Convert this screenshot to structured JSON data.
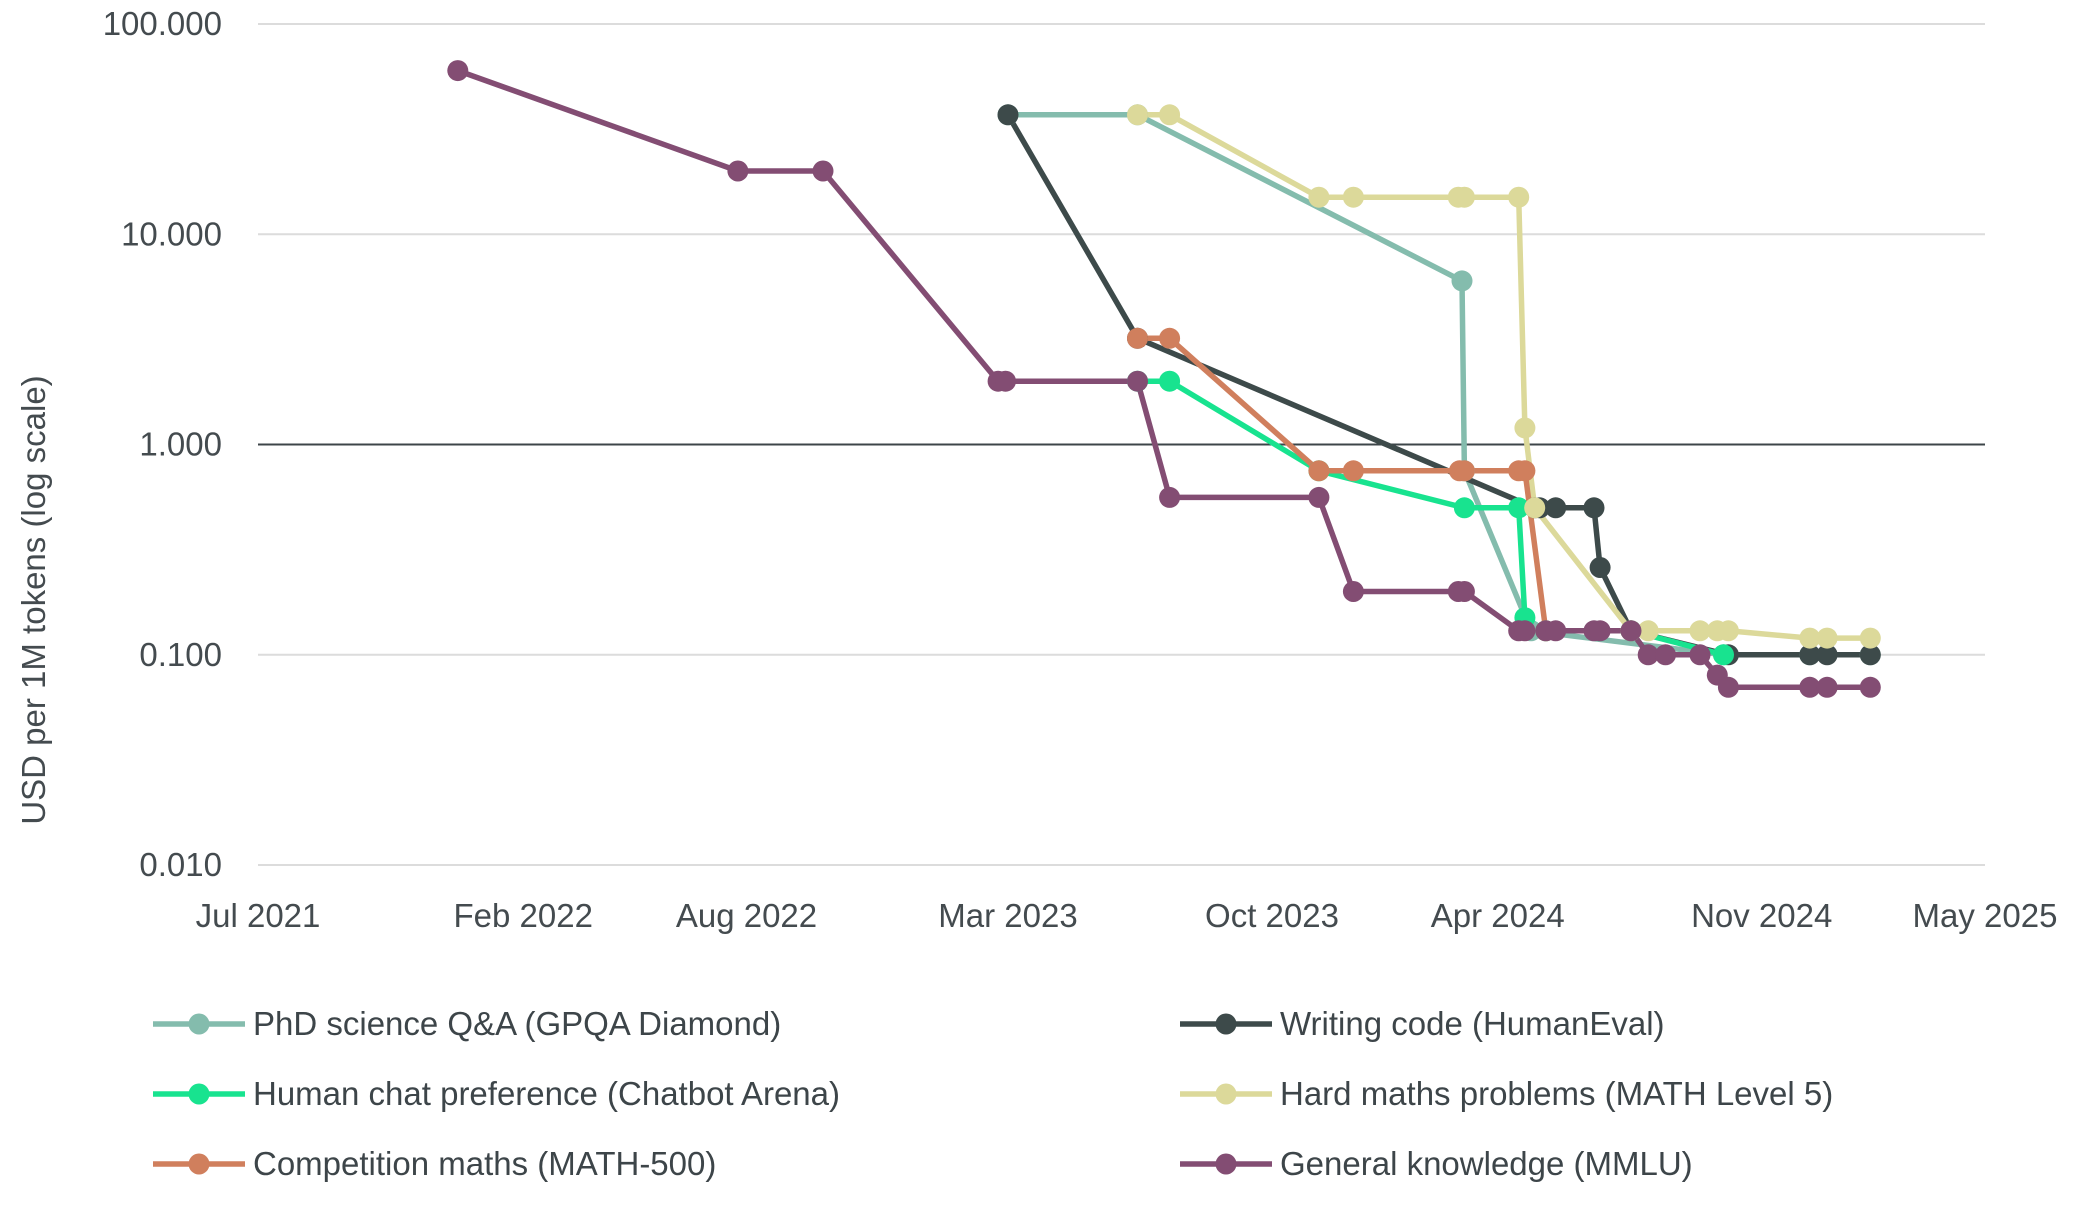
{
  "chart_data": {
    "type": "line",
    "title": "",
    "ylabel": "USD per 1M tokens (log scale)",
    "yscale": "log",
    "ylim": [
      0.01,
      100
    ],
    "yticks": [
      0.01,
      0.1,
      1,
      10,
      100
    ],
    "ytick_labels": [
      "0.010",
      "0.100",
      "1.000",
      "10.000",
      "100.000"
    ],
    "xlim": [
      "2021-07-01",
      "2025-05-01"
    ],
    "xticks": [
      "2021-07-01",
      "2022-02-01",
      "2022-08-01",
      "2023-03-01",
      "2023-10-01",
      "2024-04-01",
      "2024-11-01",
      "2025-05-01"
    ],
    "xtick_labels": [
      "Jul 2021",
      "Feb 2022",
      "Aug 2022",
      "Mar 2023",
      "Oct 2023",
      "Apr 2024",
      "Nov 2024",
      "May 2025"
    ],
    "reference_line": 1,
    "grid": "horizontal",
    "legend_position": "bottom",
    "series": [
      {
        "name": "PhD science Q&A (GPQA Diamond)",
        "color": "#84bcad",
        "points": [
          [
            "2023-03-01",
            37
          ],
          [
            "2023-06-14",
            37
          ],
          [
            "2024-03-03",
            6
          ],
          [
            "2024-03-05",
            0.75
          ],
          [
            "2024-04-28",
            0.13
          ],
          [
            "2024-10-01",
            0.1
          ],
          [
            "2024-12-10",
            0.1
          ],
          [
            "2025-01-28",
            0.1
          ]
        ]
      },
      {
        "name": "Writing code (HumanEval)",
        "color": "#3d4a4a",
        "points": [
          [
            "2023-03-01",
            37
          ],
          [
            "2023-06-14",
            3.2
          ],
          [
            "2024-05-01",
            0.5
          ],
          [
            "2024-05-05",
            0.5
          ],
          [
            "2024-05-18",
            0.5
          ],
          [
            "2024-06-18",
            0.5
          ],
          [
            "2024-06-23",
            0.26
          ],
          [
            "2024-07-18",
            0.13
          ],
          [
            "2024-10-05",
            0.1
          ],
          [
            "2024-12-10",
            0.1
          ],
          [
            "2024-12-24",
            0.1
          ],
          [
            "2025-01-28",
            0.1
          ]
        ]
      },
      {
        "name": "Human chat preference (Chatbot Arena)",
        "color": "#18e38f",
        "points": [
          [
            "2023-06-14",
            2
          ],
          [
            "2023-07-10",
            2
          ],
          [
            "2023-11-08",
            0.75
          ],
          [
            "2024-03-05",
            0.5
          ],
          [
            "2024-04-18",
            0.5
          ],
          [
            "2024-04-23",
            0.15
          ],
          [
            "2024-05-10",
            0.13
          ],
          [
            "2024-07-18",
            0.13
          ],
          [
            "2024-10-01",
            0.1
          ]
        ]
      },
      {
        "name": "Hard maths problems (MATH Level 5)",
        "color": "#dcd99a",
        "points": [
          [
            "2023-06-14",
            37
          ],
          [
            "2023-07-10",
            37
          ],
          [
            "2023-11-08",
            15
          ],
          [
            "2023-12-06",
            15
          ],
          [
            "2024-02-29",
            15
          ],
          [
            "2024-03-05",
            15
          ],
          [
            "2024-04-18",
            15
          ],
          [
            "2024-04-23",
            1.2
          ],
          [
            "2024-05-01",
            0.5
          ],
          [
            "2024-07-18",
            0.13
          ],
          [
            "2024-08-01",
            0.13
          ],
          [
            "2024-09-12",
            0.13
          ],
          [
            "2024-09-26",
            0.13
          ],
          [
            "2024-10-05",
            0.13
          ],
          [
            "2024-12-10",
            0.12
          ],
          [
            "2024-12-24",
            0.12
          ],
          [
            "2025-01-28",
            0.12
          ]
        ]
      },
      {
        "name": "Competition maths (MATH-500)",
        "color": "#d07f5d",
        "points": [
          [
            "2023-06-14",
            3.2
          ],
          [
            "2023-07-10",
            3.2
          ],
          [
            "2023-11-08",
            0.75
          ],
          [
            "2023-12-06",
            0.75
          ],
          [
            "2024-03-01",
            0.75
          ],
          [
            "2024-03-05",
            0.75
          ],
          [
            "2024-04-18",
            0.75
          ],
          [
            "2024-04-23",
            0.75
          ],
          [
            "2024-05-10",
            0.13
          ]
        ]
      },
      {
        "name": "General knowledge (MMLU)",
        "color": "#834d73",
        "points": [
          [
            "2021-12-10",
            60
          ],
          [
            "2022-07-25",
            20
          ],
          [
            "2022-10-02",
            20
          ],
          [
            "2023-02-21",
            2
          ],
          [
            "2023-02-27",
            2
          ],
          [
            "2023-06-14",
            2
          ],
          [
            "2023-07-10",
            0.56
          ],
          [
            "2023-11-08",
            0.56
          ],
          [
            "2023-12-06",
            0.2
          ],
          [
            "2024-02-29",
            0.2
          ],
          [
            "2024-03-05",
            0.2
          ],
          [
            "2024-04-18",
            0.13
          ],
          [
            "2024-04-23",
            0.13
          ],
          [
            "2024-05-10",
            0.13
          ],
          [
            "2024-05-18",
            0.13
          ],
          [
            "2024-06-18",
            0.13
          ],
          [
            "2024-06-23",
            0.13
          ],
          [
            "2024-07-18",
            0.13
          ],
          [
            "2024-08-01",
            0.1
          ],
          [
            "2024-08-15",
            0.1
          ],
          [
            "2024-09-12",
            0.1
          ],
          [
            "2024-09-26",
            0.08
          ],
          [
            "2024-10-05",
            0.07
          ],
          [
            "2024-12-10",
            0.07
          ],
          [
            "2024-12-24",
            0.07
          ],
          [
            "2025-01-28",
            0.07
          ]
        ]
      }
    ]
  }
}
